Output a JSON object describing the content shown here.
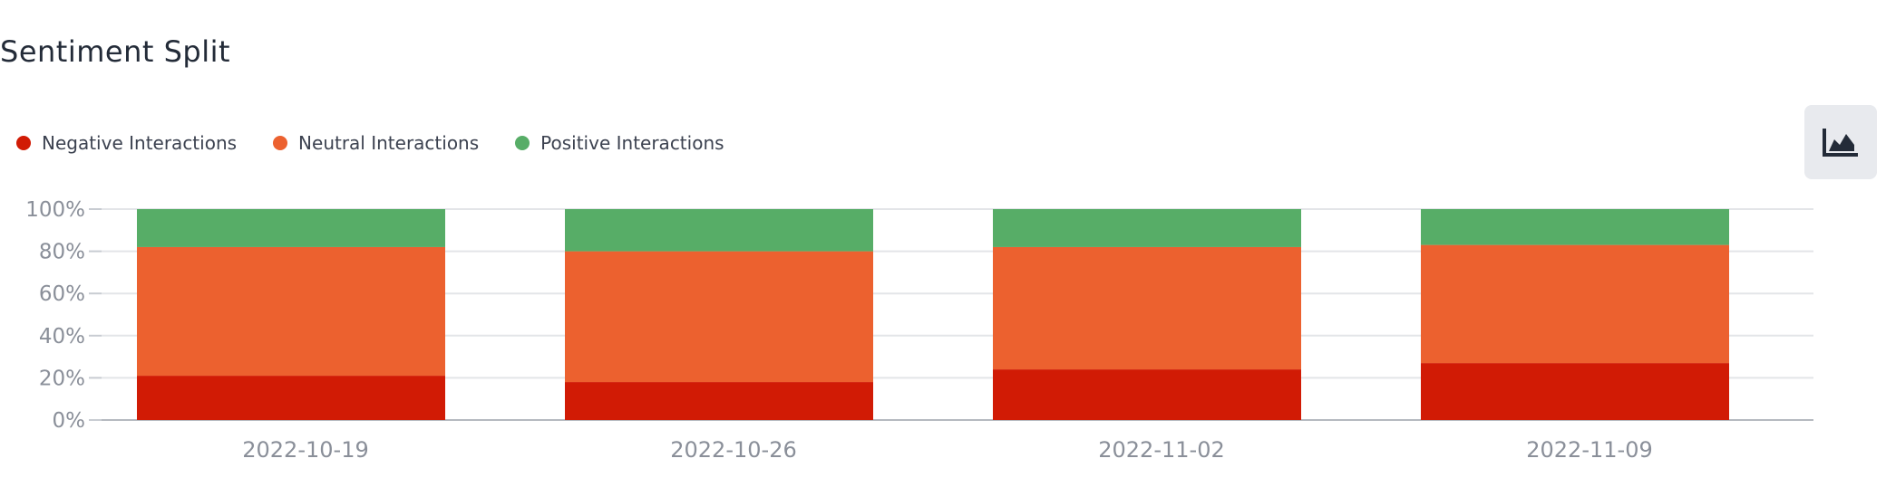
{
  "title": "Sentiment Split",
  "legend": [
    {
      "label": "Negative Interactions",
      "color": "#d11b05"
    },
    {
      "label": "Neutral Interactions",
      "color": "#ec612f"
    },
    {
      "label": "Positive Interactions",
      "color": "#57ad67"
    }
  ],
  "toggle_icon": "area-chart-icon",
  "chart_data": {
    "type": "bar",
    "stacked": true,
    "categories": [
      "2022-10-19",
      "2022-10-26",
      "2022-11-02",
      "2022-11-09"
    ],
    "series": [
      {
        "name": "Negative Interactions",
        "color": "#d11b05",
        "values": [
          21,
          18,
          24,
          27
        ]
      },
      {
        "name": "Neutral Interactions",
        "color": "#ec612f",
        "values": [
          61,
          62,
          58,
          56
        ]
      },
      {
        "name": "Positive Interactions",
        "color": "#57ad67",
        "values": [
          18,
          20,
          18,
          17
        ]
      }
    ],
    "ylim": [
      0,
      100
    ],
    "yticks": [
      "0%",
      "20%",
      "40%",
      "60%",
      "80%",
      "100%"
    ],
    "grid": true,
    "legend_position": "top-left"
  }
}
